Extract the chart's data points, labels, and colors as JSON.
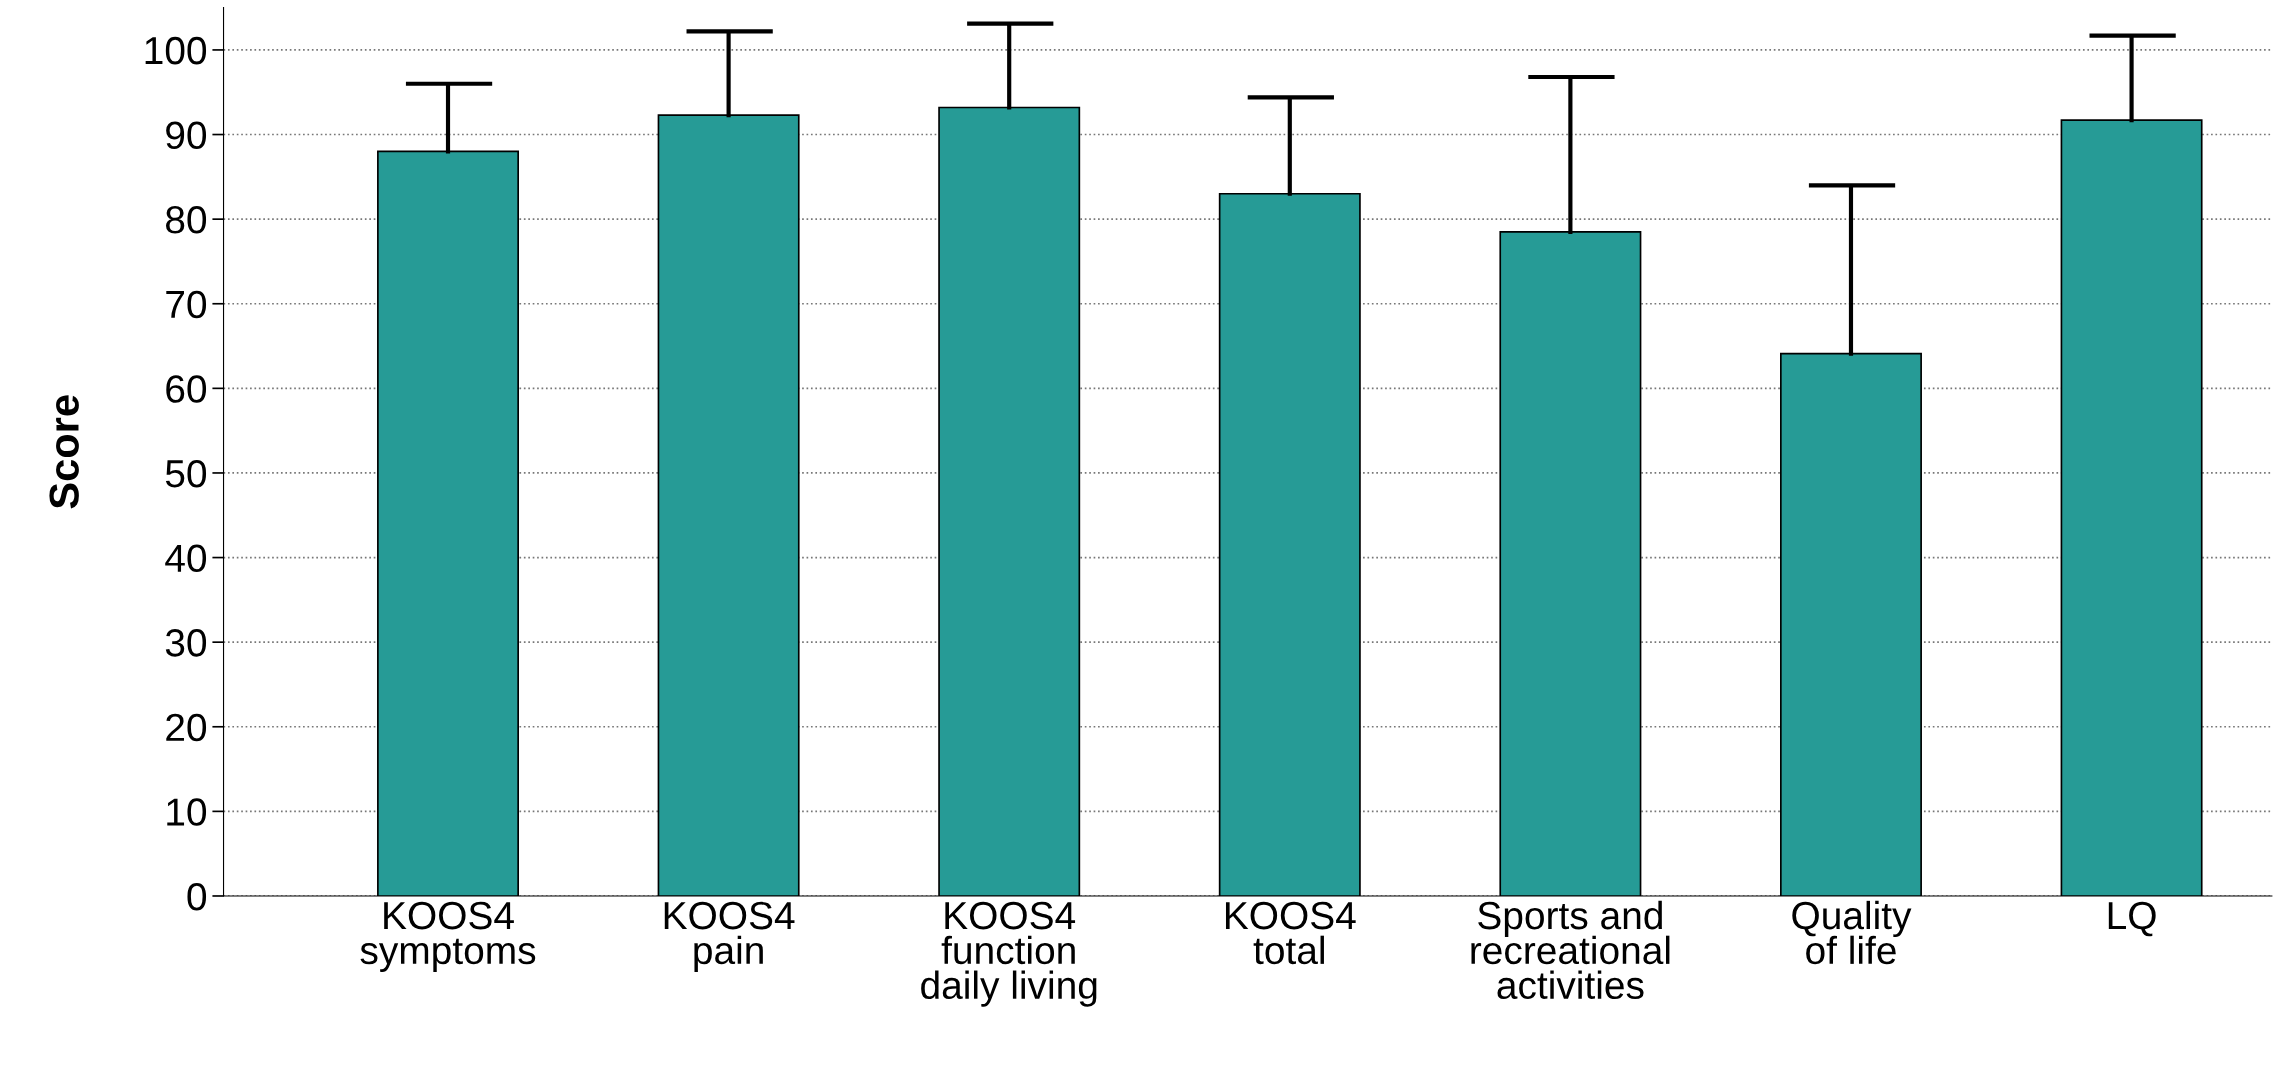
{
  "chart_data": {
    "type": "bar",
    "ylabel": "Score",
    "categories": [
      "KOOS4\nsymptoms",
      "KOOS4\npain",
      "KOOS4\nfunction\ndaily living",
      "KOOS4\ntotal",
      "Sports and\nrecreational\nactivities",
      "Quality\nof life",
      "LQ"
    ],
    "values": [
      88.0,
      92.3,
      93.2,
      83.0,
      78.5,
      64.1,
      91.7
    ],
    "errors": [
      [
        88.0,
        96.0
      ],
      [
        92.3,
        102.2
      ],
      [
        93.2,
        103.1
      ],
      [
        83.0,
        94.4
      ],
      [
        78.5,
        96.8
      ],
      [
        64.1,
        84.0
      ],
      [
        91.7,
        101.7
      ]
    ],
    "color": "#269b96",
    "ylim": [
      0,
      105
    ],
    "yticks": [
      0,
      10,
      20,
      30,
      40,
      50,
      60,
      70,
      80,
      90,
      100
    ],
    "grid": "y"
  }
}
